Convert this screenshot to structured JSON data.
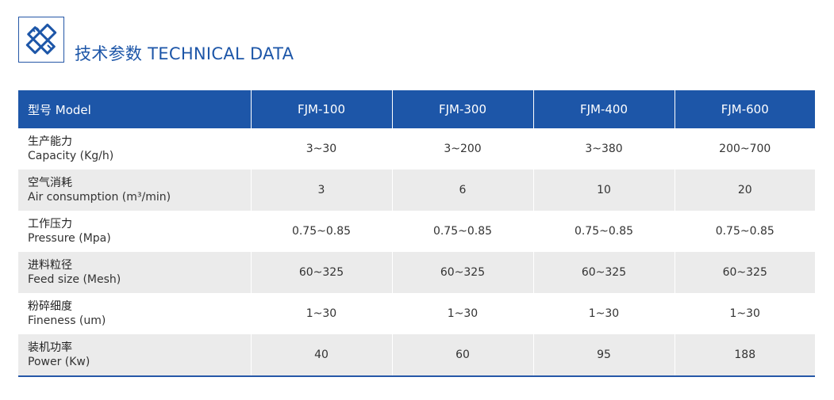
{
  "header": {
    "title": "技术参数 TECHNICAL DATA",
    "icon": "ruler-pencil-icon",
    "accent_color": "#1d56a8"
  },
  "table": {
    "columns": [
      "型号 Model",
      "FJM-100",
      "FJM-300",
      "FJM-400",
      "FJM-600"
    ],
    "rows": [
      {
        "cn": "生产能力",
        "en": "Capacity (Kg/h)",
        "values": [
          "3~30",
          "3~200",
          "3~380",
          "200~700"
        ]
      },
      {
        "cn": "空气消耗",
        "en": "Air consumption (m³/min)",
        "values": [
          "3",
          "6",
          "10",
          "20"
        ]
      },
      {
        "cn": "工作压力",
        "en": "Pressure (Mpa)",
        "values": [
          "0.75~0.85",
          "0.75~0.85",
          "0.75~0.85",
          "0.75~0.85"
        ]
      },
      {
        "cn": "进料粒径",
        "en": "Feed size (Mesh)",
        "values": [
          "60~325",
          "60~325",
          "60~325",
          "60~325"
        ]
      },
      {
        "cn": "粉碎细度",
        "en": "Fineness (um)",
        "values": [
          "1~30",
          "1~30",
          "1~30",
          "1~30"
        ]
      },
      {
        "cn": "装机功率",
        "en": "Power (Kw)",
        "values": [
          "40",
          "60",
          "95",
          "188"
        ]
      }
    ]
  }
}
